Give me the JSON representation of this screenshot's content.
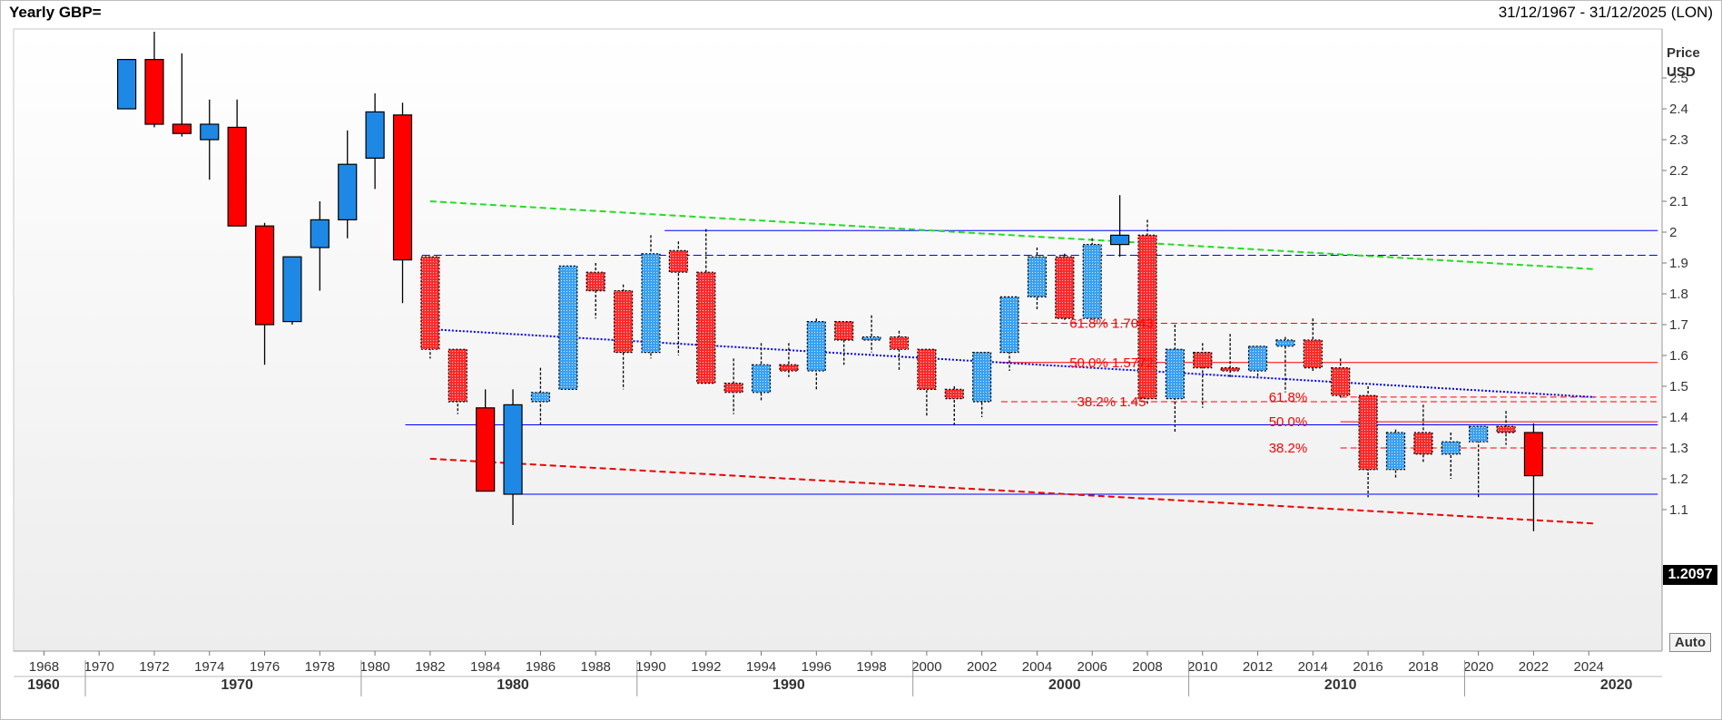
{
  "header": {
    "title": "Yearly GBP=",
    "date_range": "31/12/1967 - 31/12/2025 (LON)"
  },
  "axis": {
    "price_label_1": "Price",
    "price_label_2": "USD",
    "last_price": "1.2097",
    "auto_button": "Auto"
  },
  "chart_data": {
    "type": "candlestick",
    "title": "Yearly GBP=",
    "ylabel": "Price USD",
    "ylim": [
      1.0,
      2.65
    ],
    "xlim": [
      1966.9,
      2026.5
    ],
    "y_ticks": [
      1.1,
      1.2,
      1.3,
      1.4,
      1.5,
      1.6,
      1.7,
      1.8,
      1.9,
      2.0,
      2.1,
      2.2,
      2.3,
      2.4,
      2.5
    ],
    "x_ticks": [
      1968,
      1970,
      1972,
      1974,
      1976,
      1978,
      1980,
      1982,
      1984,
      1986,
      1988,
      1990,
      1992,
      1994,
      1996,
      1998,
      2000,
      2002,
      2004,
      2006,
      2008,
      2010,
      2012,
      2014,
      2016,
      2018,
      2020,
      2022,
      2024
    ],
    "decades": [
      1960,
      1970,
      1980,
      1990,
      2000,
      2010,
      2020
    ],
    "up_color": "#1e88e5",
    "down_color": "#ff0000",
    "candles": [
      {
        "x": 1971,
        "o": 2.4,
        "h": 2.56,
        "l": 2.4,
        "c": 2.56,
        "hatch": false
      },
      {
        "x": 1972,
        "o": 2.56,
        "h": 2.65,
        "l": 2.34,
        "c": 2.35,
        "hatch": false
      },
      {
        "x": 1973,
        "o": 2.35,
        "h": 2.58,
        "l": 2.31,
        "c": 2.32,
        "hatch": false
      },
      {
        "x": 1974,
        "o": 2.3,
        "h": 2.43,
        "l": 2.17,
        "c": 2.35,
        "hatch": false
      },
      {
        "x": 1975,
        "o": 2.34,
        "h": 2.43,
        "l": 2.02,
        "c": 2.02,
        "hatch": false
      },
      {
        "x": 1976,
        "o": 2.02,
        "h": 2.03,
        "l": 1.57,
        "c": 1.7,
        "hatch": false
      },
      {
        "x": 1977,
        "o": 1.71,
        "h": 1.92,
        "l": 1.7,
        "c": 1.92,
        "hatch": false
      },
      {
        "x": 1978,
        "o": 1.95,
        "h": 2.1,
        "l": 1.81,
        "c": 2.04,
        "hatch": false
      },
      {
        "x": 1979,
        "o": 2.04,
        "h": 2.33,
        "l": 1.98,
        "c": 2.22,
        "hatch": false
      },
      {
        "x": 1980,
        "o": 2.24,
        "h": 2.45,
        "l": 2.14,
        "c": 2.39,
        "hatch": false
      },
      {
        "x": 1981,
        "o": 2.38,
        "h": 2.42,
        "l": 1.77,
        "c": 1.91,
        "hatch": false
      },
      {
        "x": 1982,
        "o": 1.92,
        "h": 1.92,
        "l": 1.59,
        "c": 1.62,
        "hatch": true
      },
      {
        "x": 1983,
        "o": 1.62,
        "h": 1.62,
        "l": 1.41,
        "c": 1.45,
        "hatch": true
      },
      {
        "x": 1984,
        "o": 1.43,
        "h": 1.49,
        "l": 1.16,
        "c": 1.16,
        "hatch": false
      },
      {
        "x": 1985,
        "o": 1.15,
        "h": 1.49,
        "l": 1.05,
        "c": 1.44,
        "hatch": false
      },
      {
        "x": 1986,
        "o": 1.45,
        "h": 1.56,
        "l": 1.37,
        "c": 1.48,
        "hatch": true
      },
      {
        "x": 1987,
        "o": 1.49,
        "h": 1.89,
        "l": 1.49,
        "c": 1.89,
        "hatch": true
      },
      {
        "x": 1988,
        "o": 1.87,
        "h": 1.9,
        "l": 1.72,
        "c": 1.81,
        "hatch": true
      },
      {
        "x": 1989,
        "o": 1.81,
        "h": 1.83,
        "l": 1.49,
        "c": 1.61,
        "hatch": true
      },
      {
        "x": 1990,
        "o": 1.61,
        "h": 1.99,
        "l": 1.59,
        "c": 1.93,
        "hatch": true
      },
      {
        "x": 1991,
        "o": 1.94,
        "h": 1.97,
        "l": 1.6,
        "c": 1.87,
        "hatch": true
      },
      {
        "x": 1992,
        "o": 1.87,
        "h": 2.01,
        "l": 1.51,
        "c": 1.51,
        "hatch": true
      },
      {
        "x": 1993,
        "o": 1.51,
        "h": 1.59,
        "l": 1.41,
        "c": 1.48,
        "hatch": true
      },
      {
        "x": 1994,
        "o": 1.48,
        "h": 1.64,
        "l": 1.45,
        "c": 1.57,
        "hatch": true
      },
      {
        "x": 1995,
        "o": 1.57,
        "h": 1.64,
        "l": 1.53,
        "c": 1.55,
        "hatch": true
      },
      {
        "x": 1996,
        "o": 1.55,
        "h": 1.72,
        "l": 1.49,
        "c": 1.71,
        "hatch": true
      },
      {
        "x": 1997,
        "o": 1.71,
        "h": 1.71,
        "l": 1.57,
        "c": 1.65,
        "hatch": true
      },
      {
        "x": 1998,
        "o": 1.65,
        "h": 1.73,
        "l": 1.61,
        "c": 1.66,
        "hatch": true
      },
      {
        "x": 1999,
        "o": 1.66,
        "h": 1.68,
        "l": 1.55,
        "c": 1.62,
        "hatch": true
      },
      {
        "x": 2000,
        "o": 1.62,
        "h": 1.62,
        "l": 1.4,
        "c": 1.49,
        "hatch": true
      },
      {
        "x": 2001,
        "o": 1.49,
        "h": 1.5,
        "l": 1.37,
        "c": 1.46,
        "hatch": true
      },
      {
        "x": 2002,
        "o": 1.45,
        "h": 1.61,
        "l": 1.4,
        "c": 1.61,
        "hatch": true
      },
      {
        "x": 2003,
        "o": 1.61,
        "h": 1.79,
        "l": 1.55,
        "c": 1.79,
        "hatch": true
      },
      {
        "x": 2004,
        "o": 1.79,
        "h": 1.95,
        "l": 1.75,
        "c": 1.92,
        "hatch": true
      },
      {
        "x": 2005,
        "o": 1.92,
        "h": 1.93,
        "l": 1.71,
        "c": 1.72,
        "hatch": true
      },
      {
        "x": 2006,
        "o": 1.72,
        "h": 1.98,
        "l": 1.72,
        "c": 1.96,
        "hatch": true
      },
      {
        "x": 2007,
        "o": 1.96,
        "h": 2.12,
        "l": 1.92,
        "c": 1.99,
        "hatch": false
      },
      {
        "x": 2008,
        "o": 1.99,
        "h": 2.04,
        "l": 1.44,
        "c": 1.46,
        "hatch": true
      },
      {
        "x": 2009,
        "o": 1.46,
        "h": 1.7,
        "l": 1.35,
        "c": 1.62,
        "hatch": true
      },
      {
        "x": 2010,
        "o": 1.61,
        "h": 1.64,
        "l": 1.43,
        "c": 1.56,
        "hatch": true
      },
      {
        "x": 2011,
        "o": 1.56,
        "h": 1.67,
        "l": 1.53,
        "c": 1.55,
        "hatch": true
      },
      {
        "x": 2012,
        "o": 1.55,
        "h": 1.63,
        "l": 1.53,
        "c": 1.63,
        "hatch": true
      },
      {
        "x": 2013,
        "o": 1.63,
        "h": 1.66,
        "l": 1.48,
        "c": 1.65,
        "hatch": true
      },
      {
        "x": 2014,
        "o": 1.65,
        "h": 1.72,
        "l": 1.55,
        "c": 1.56,
        "hatch": true
      },
      {
        "x": 2015,
        "o": 1.56,
        "h": 1.59,
        "l": 1.46,
        "c": 1.47,
        "hatch": true
      },
      {
        "x": 2016,
        "o": 1.47,
        "h": 1.5,
        "l": 1.14,
        "c": 1.23,
        "hatch": true
      },
      {
        "x": 2017,
        "o": 1.23,
        "h": 1.36,
        "l": 1.2,
        "c": 1.35,
        "hatch": true
      },
      {
        "x": 2018,
        "o": 1.35,
        "h": 1.44,
        "l": 1.25,
        "c": 1.28,
        "hatch": true
      },
      {
        "x": 2019,
        "o": 1.28,
        "h": 1.35,
        "l": 1.2,
        "c": 1.32,
        "hatch": true
      },
      {
        "x": 2020,
        "o": 1.32,
        "h": 1.37,
        "l": 1.14,
        "c": 1.37,
        "hatch": true
      },
      {
        "x": 2021,
        "o": 1.37,
        "h": 1.42,
        "l": 1.31,
        "c": 1.35,
        "hatch": true
      },
      {
        "x": 2022,
        "o": 1.35,
        "h": 1.38,
        "l": 1.03,
        "c": 1.21,
        "hatch": false
      }
    ],
    "h_lines": [
      {
        "y": 2.005,
        "x1": 1990.5,
        "x2": 2026.5,
        "style": "solid",
        "color": "#0000ff"
      },
      {
        "y": 1.925,
        "x1": 1981.7,
        "x2": 2026.5,
        "style": "dashed-solid",
        "color": "#0000ff"
      },
      {
        "y": 1.375,
        "x1": 1981.1,
        "x2": 2026.5,
        "style": "solid",
        "color": "#0000ff"
      },
      {
        "y": 1.15,
        "x1": 1985.0,
        "x2": 2026.5,
        "style": "solid",
        "color": "#0000ff"
      },
      {
        "y": 1.7043,
        "x1": 2002.7,
        "x2": 2026.5,
        "style": "dashed",
        "color": "#ff0000"
      },
      {
        "y": 1.5772,
        "x1": 2002.7,
        "x2": 2026.5,
        "style": "solid",
        "color": "#ff0000"
      },
      {
        "y": 1.45,
        "x1": 2002.7,
        "x2": 2026.5,
        "style": "dashed",
        "color": "#ff0000"
      },
      {
        "y": 1.465,
        "x1": 2015.0,
        "x2": 2026.5,
        "style": "dashed",
        "color": "#ff0000"
      },
      {
        "y": 1.385,
        "x1": 2015.0,
        "x2": 2026.5,
        "style": "solid",
        "color": "#ff0000"
      },
      {
        "y": 1.3,
        "x1": 2015.0,
        "x2": 2026.5,
        "style": "dashed",
        "color": "#ff0000"
      }
    ],
    "trend_lines": [
      {
        "x1": 1982.0,
        "y1": 2.1,
        "x2": 2024.2,
        "y2": 1.88,
        "color": "#22dd22",
        "style": "dashed"
      },
      {
        "x1": 1982.0,
        "y1": 1.685,
        "x2": 2024.2,
        "y2": 1.465,
        "color": "#0000ff",
        "style": "dotted"
      },
      {
        "x1": 1982.0,
        "y1": 1.265,
        "x2": 2024.2,
        "y2": 1.055,
        "color": "#ee0000",
        "style": "dashed"
      }
    ],
    "annotations": [
      {
        "text": "61.8% 1.7043",
        "x": 2006.7,
        "y": 1.7043
      },
      {
        "text": "50.0% 1.5772",
        "x": 2006.7,
        "y": 1.5772
      },
      {
        "text": "38.2% 1.45",
        "x": 2006.7,
        "y": 1.45
      },
      {
        "text": "61.8%",
        "x": 2013.1,
        "y": 1.465
      },
      {
        "text": "50.0%",
        "x": 2013.1,
        "y": 1.385
      },
      {
        "text": "38.2%",
        "x": 2013.1,
        "y": 1.3
      }
    ]
  }
}
